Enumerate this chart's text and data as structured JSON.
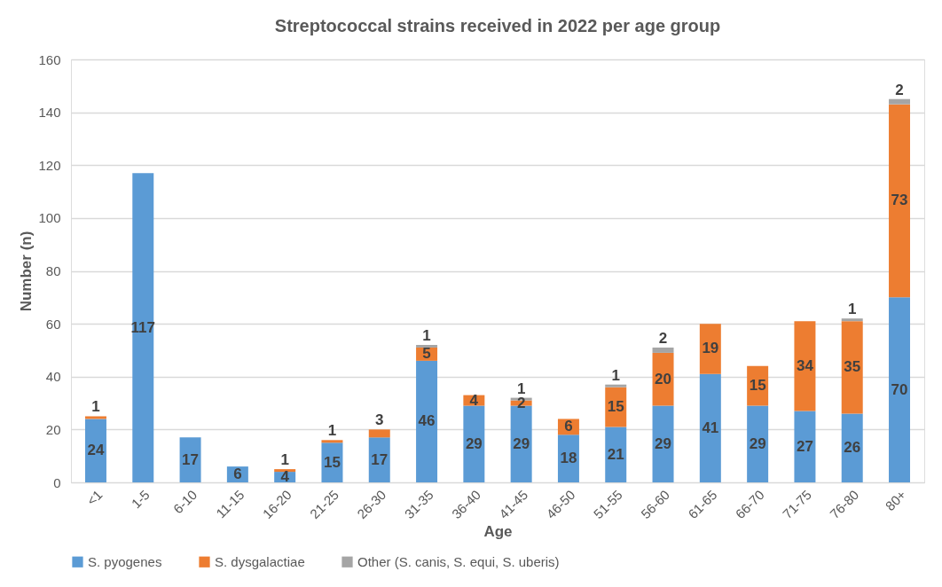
{
  "chart_data": {
    "type": "bar",
    "title": "Streptococcal strains received in 2022 per age group",
    "xlabel": "Age",
    "ylabel": "Number (n)",
    "categories": [
      "<1",
      "1-5",
      "6-10",
      "11-15",
      "16-20",
      "21-25",
      "26-30",
      "31-35",
      "36-40",
      "41-45",
      "46-50",
      "51-55",
      "56-60",
      "61-65",
      "66-70",
      "71-75",
      "76-80",
      "80+"
    ],
    "stacked": true,
    "data_labels": true,
    "grid": "y",
    "legend": "bottom",
    "ylim": [
      0,
      160
    ],
    "yticks": [
      0,
      20,
      40,
      60,
      80,
      100,
      120,
      140,
      160
    ],
    "series": [
      {
        "name": "S. pyogenes",
        "color": "#5b9bd5",
        "values": [
          24,
          117,
          17,
          6,
          4,
          15,
          17,
          46,
          29,
          29,
          18,
          21,
          29,
          41,
          29,
          27,
          26,
          70
        ]
      },
      {
        "name": "S. dysgalactiae",
        "color": "#ed7d31",
        "values": [
          1,
          null,
          null,
          null,
          1,
          1,
          3,
          5,
          4,
          2,
          6,
          15,
          20,
          19,
          15,
          34,
          35,
          73
        ]
      },
      {
        "name": "Other (S. canis, S. equi, S. uberis)",
        "color": "#a5a5a5",
        "values": [
          null,
          null,
          null,
          null,
          null,
          null,
          null,
          1,
          null,
          1,
          null,
          1,
          2,
          null,
          null,
          null,
          1,
          2
        ]
      }
    ]
  }
}
